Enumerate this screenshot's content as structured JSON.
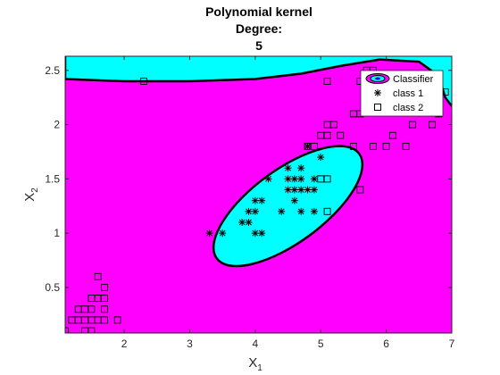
{
  "chart_data": {
    "type": "scatter",
    "title": [
      "Polynomial kernel",
      "Degree:",
      "5"
    ],
    "xlabel": "X",
    "xlabel_sub": "1",
    "ylabel": "X",
    "ylabel_sub": "2",
    "xlim": [
      1.1,
      7.0
    ],
    "ylim": [
      0.08,
      2.63
    ],
    "xticks": [
      2,
      3,
      4,
      5,
      6,
      7
    ],
    "yticks": [
      0.5,
      1,
      1.5,
      2,
      2.5
    ],
    "grid": false,
    "legend_position": "top-right",
    "legend": [
      "Classifier",
      "class 1",
      "class 2"
    ],
    "colors": {
      "class1_region": "#00ffff",
      "class2_region": "#ff00ff",
      "boundary": "#000000",
      "markers": "#000000"
    },
    "boundary_ellipse": {
      "center": [
        4.5,
        1.25
      ],
      "semi_axes": [
        1.45,
        0.46
      ],
      "rotation_deg": 36.3
    },
    "top_region_boundary": [
      [
        1.1,
        2.42
      ],
      [
        2.0,
        2.4
      ],
      [
        3.0,
        2.4
      ],
      [
        4.0,
        2.42
      ],
      [
        4.7,
        2.47
      ],
      [
        5.3,
        2.54
      ],
      [
        5.9,
        2.6
      ],
      [
        6.5,
        2.58
      ],
      [
        6.8,
        2.45
      ],
      [
        6.9,
        2.25
      ],
      [
        7.0,
        2.17
      ]
    ],
    "series": [
      {
        "name": "class 1",
        "marker": "asterisk",
        "points": [
          [
            3.3,
            1.0
          ],
          [
            3.5,
            1.0
          ],
          [
            3.8,
            1.1
          ],
          [
            3.9,
            1.1
          ],
          [
            3.9,
            1.2
          ],
          [
            4.0,
            1.2
          ],
          [
            4.0,
            1.3
          ],
          [
            4.1,
            1.3
          ],
          [
            4.0,
            1.0
          ],
          [
            4.1,
            1.0
          ],
          [
            4.2,
            1.5
          ],
          [
            4.4,
            1.2
          ],
          [
            4.5,
            1.6
          ],
          [
            4.5,
            1.5
          ],
          [
            4.5,
            1.4
          ],
          [
            4.6,
            1.5
          ],
          [
            4.6,
            1.4
          ],
          [
            4.6,
            1.3
          ],
          [
            4.7,
            1.6
          ],
          [
            4.7,
            1.5
          ],
          [
            4.7,
            1.4
          ],
          [
            4.7,
            1.2
          ],
          [
            4.8,
            1.8
          ],
          [
            4.8,
            1.4
          ],
          [
            4.9,
            1.5
          ],
          [
            4.9,
            1.4
          ],
          [
            5.0,
            1.7
          ],
          [
            4.9,
            1.2
          ]
        ]
      },
      {
        "name": "class 2",
        "marker": "square",
        "points": [
          [
            1.1,
            0.1
          ],
          [
            1.2,
            0.2
          ],
          [
            1.3,
            0.2
          ],
          [
            1.3,
            0.3
          ],
          [
            1.4,
            0.2
          ],
          [
            1.4,
            0.3
          ],
          [
            1.4,
            0.1
          ],
          [
            1.5,
            0.2
          ],
          [
            1.5,
            0.1
          ],
          [
            1.5,
            0.3
          ],
          [
            1.5,
            0.4
          ],
          [
            1.6,
            0.2
          ],
          [
            1.6,
            0.4
          ],
          [
            1.6,
            0.6
          ],
          [
            1.7,
            0.3
          ],
          [
            1.7,
            0.4
          ],
          [
            1.7,
            0.5
          ],
          [
            1.7,
            0.2
          ],
          [
            1.9,
            0.2
          ],
          [
            1.6,
            0.4
          ],
          [
            2.3,
            2.4
          ],
          [
            4.8,
            1.8
          ],
          [
            4.9,
            1.8
          ],
          [
            5.0,
            1.9
          ],
          [
            5.1,
            2.0
          ],
          [
            5.1,
            1.9
          ],
          [
            5.1,
            2.4
          ],
          [
            5.2,
            2.0
          ],
          [
            5.3,
            1.9
          ],
          [
            5.5,
            2.1
          ],
          [
            5.5,
            1.8
          ],
          [
            5.6,
            2.1
          ],
          [
            5.6,
            2.4
          ],
          [
            5.7,
            2.5
          ],
          [
            5.8,
            2.2
          ],
          [
            5.8,
            1.8
          ],
          [
            5.8,
            2.5
          ],
          [
            5.9,
            2.3
          ],
          [
            6.0,
            2.2
          ],
          [
            6.0,
            1.8
          ],
          [
            6.1,
            1.9
          ],
          [
            6.1,
            2.3
          ],
          [
            6.2,
            2.4
          ],
          [
            6.3,
            1.8
          ],
          [
            6.4,
            2.0
          ],
          [
            6.7,
            2.0
          ],
          [
            6.9,
            2.3
          ],
          [
            5.6,
            1.4
          ],
          [
            5.1,
            1.5
          ],
          [
            5.0,
            1.5
          ],
          [
            5.1,
            1.2
          ],
          [
            6.8,
            2.1
          ]
        ]
      }
    ]
  }
}
